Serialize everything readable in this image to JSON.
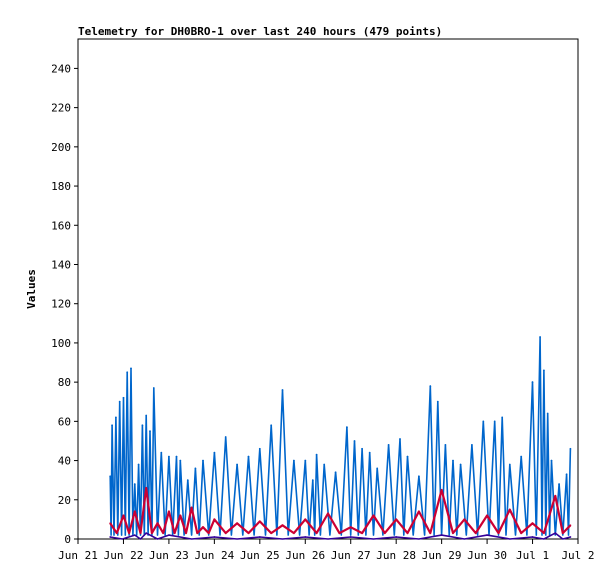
{
  "chart_data": {
    "type": "line",
    "title": "Telemetry for DH0BRO-1 over last 240 hours (479 points)",
    "xlabel": "",
    "ylabel": "Values",
    "ylim": [
      0,
      255
    ],
    "yticks": [
      0,
      20,
      40,
      60,
      80,
      100,
      120,
      140,
      160,
      180,
      200,
      220,
      240
    ],
    "x_range": [
      "Jun 21 00:00",
      "Jul 2 00:00"
    ],
    "xticks": [
      "Jun 21",
      "Jun 22",
      "Jun 23",
      "Jun 24",
      "Jun 25",
      "Jun 26",
      "Jun 27",
      "Jun 28",
      "Jun 29",
      "Jun 30",
      "Jul 1",
      "Jul 2"
    ],
    "grid": false,
    "legend": "none",
    "colors": {
      "series_1": "#0066cc",
      "series_2": "#cc0033",
      "series_3": "#330099"
    },
    "series": [
      {
        "color": "#0066cc",
        "x": [
          "Jun 21 17:00",
          "Jun 21 18:00",
          "Jun 21 20:00",
          "Jun 21 22:00",
          "Jun 22 00:00",
          "Jun 22 02:00",
          "Jun 22 04:00",
          "Jun 22 06:00",
          "Jun 22 08:00",
          "Jun 22 10:00",
          "Jun 22 12:00",
          "Jun 22 14:00",
          "Jun 22 16:00",
          "Jun 22 20:00",
          "Jun 23 00:00",
          "Jun 23 04:00",
          "Jun 23 06:00",
          "Jun 23 10:00",
          "Jun 23 14:00",
          "Jun 23 18:00",
          "Jun 24 00:00",
          "Jun 24 06:00",
          "Jun 24 12:00",
          "Jun 24 18:00",
          "Jun 25 00:00",
          "Jun 25 06:00",
          "Jun 25 12:00",
          "Jun 25 18:00",
          "Jun 26 00:00",
          "Jun 26 04:00",
          "Jun 26 06:00",
          "Jun 26 10:00",
          "Jun 26 16:00",
          "Jun 26 22:00",
          "Jun 27 02:00",
          "Jun 27 06:00",
          "Jun 27 10:00",
          "Jun 27 14:00",
          "Jun 27 20:00",
          "Jun 28 02:00",
          "Jun 28 06:00",
          "Jun 28 12:00",
          "Jun 28 18:00",
          "Jun 28 22:00",
          "Jun 29 02:00",
          "Jun 29 06:00",
          "Jun 29 10:00",
          "Jun 29 16:00",
          "Jun 29 22:00",
          "Jun 30 04:00",
          "Jun 30 08:00",
          "Jun 30 12:00",
          "Jun 30 18:00",
          "Jul 1 00:00",
          "Jul 1 04:00",
          "Jul 1 06:00",
          "Jul 1 08:00",
          "Jul 1 10:00",
          "Jul 1 14:00",
          "Jul 1 18:00",
          "Jul 1 20:00"
        ],
        "values": [
          32,
          58,
          62,
          70,
          72,
          85,
          87,
          28,
          38,
          58,
          63,
          55,
          77,
          44,
          42,
          42,
          40,
          30,
          36,
          40,
          44,
          52,
          38,
          42,
          46,
          58,
          76,
          40,
          40,
          30,
          43,
          38,
          34,
          57,
          50,
          46,
          44,
          36,
          48,
          51,
          42,
          32,
          78,
          70,
          48,
          40,
          38,
          48,
          60,
          60,
          62,
          38,
          42,
          80,
          103,
          86,
          64,
          40,
          28,
          33,
          46
        ]
      },
      {
        "color": "#cc0033",
        "x": [
          "Jun 21 17:00",
          "Jun 22 00:00",
          "Jun 22 06:00",
          "Jun 22 12:00",
          "Jun 22 18:00",
          "Jun 23 00:00",
          "Jun 23 06:00",
          "Jun 23 12:00",
          "Jun 23 18:00",
          "Jun 24 00:00",
          "Jun 24 12:00",
          "Jun 25 00:00",
          "Jun 25 12:00",
          "Jun 26 00:00",
          "Jun 26 12:00",
          "Jun 27 00:00",
          "Jun 27 12:00",
          "Jun 28 00:00",
          "Jun 28 12:00",
          "Jun 29 00:00",
          "Jun 29 12:00",
          "Jun 30 00:00",
          "Jun 30 12:00",
          "Jul 1 00:00",
          "Jul 1 12:00",
          "Jul 1 20:00"
        ],
        "values": [
          8,
          12,
          14,
          26,
          8,
          14,
          12,
          16,
          6,
          10,
          8,
          9,
          7,
          10,
          13,
          6,
          12,
          10,
          14,
          25,
          10,
          12,
          15,
          8,
          22,
          7
        ]
      },
      {
        "color": "#330099",
        "x": [
          "Jun 21 17:00",
          "Jun 22 06:00",
          "Jun 22 12:00",
          "Jun 23 00:00",
          "Jun 24 00:00",
          "Jun 25 00:00",
          "Jun 26 00:00",
          "Jun 27 00:00",
          "Jun 28 00:00",
          "Jun 29 00:00",
          "Jun 30 00:00",
          "Jul 1 00:00",
          "Jul 1 12:00",
          "Jul 1 20:00"
        ],
        "values": [
          1,
          2,
          3,
          2,
          1,
          1,
          1,
          1,
          1,
          2,
          2,
          1,
          3,
          1
        ]
      }
    ]
  }
}
